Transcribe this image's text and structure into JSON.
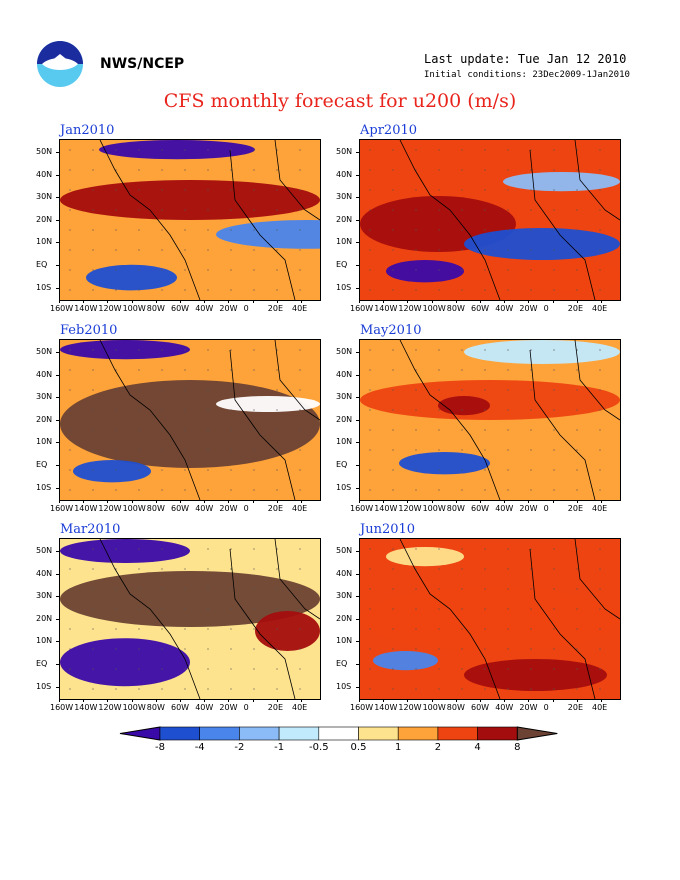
{
  "header": {
    "agency": "NWS/NCEP",
    "last_update": "Last update: Tue Jan 12 2010",
    "initial_conditions": "Initial conditions: 23Dec2009-1Jan2010",
    "title": "CFS monthly forecast for u200 (m/s)"
  },
  "map_axes": {
    "lat_labels": [
      "50N",
      "40N",
      "30N",
      "20N",
      "10N",
      "EQ",
      "10S"
    ],
    "lon_labels": [
      "160W",
      "140W",
      "120W",
      "100W",
      "80W",
      "60W",
      "40W",
      "20W",
      "0",
      "20E",
      "40E"
    ]
  },
  "panels": [
    {
      "title": "Jan2010"
    },
    {
      "title": "Apr2010"
    },
    {
      "title": "Feb2010"
    },
    {
      "title": "May2010"
    },
    {
      "title": "Mar2010"
    },
    {
      "title": "Jun2010"
    }
  ],
  "colorbar": {
    "labels": [
      "-8",
      "-4",
      "-2",
      "-1",
      "-0.5",
      "0.5",
      "1",
      "2",
      "4",
      "8"
    ],
    "colors": [
      "#3a0aa8",
      "#1f4fd1",
      "#4a85ec",
      "#8cbcf7",
      "#c2eafd",
      "#ffffff",
      "#fee38e",
      "#fda33a",
      "#ee4411",
      "#a40d0d",
      "#6b4233"
    ]
  }
}
